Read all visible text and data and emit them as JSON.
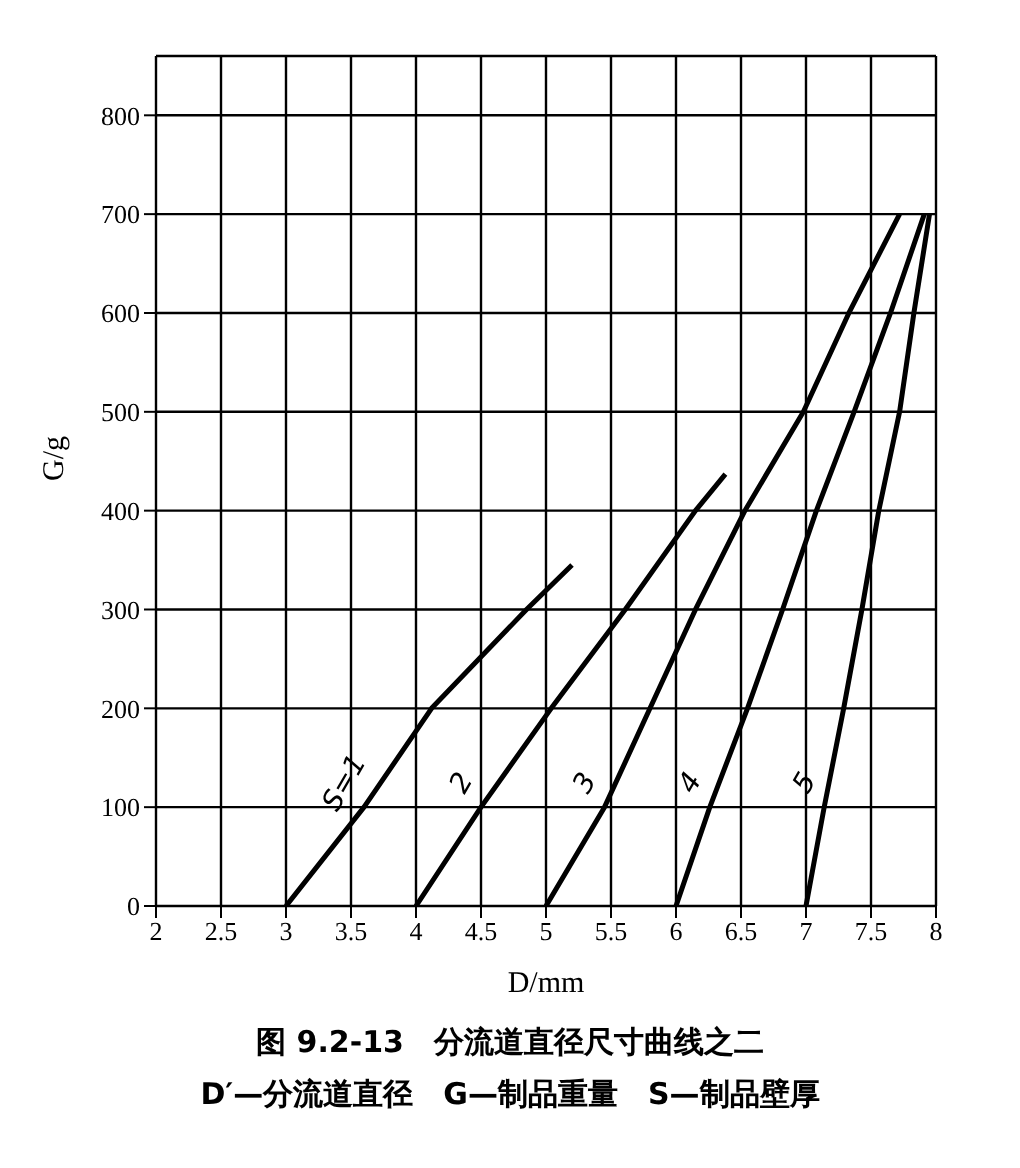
{
  "chart_data": {
    "type": "line",
    "xlabel": "D/mm",
    "ylabel": "G/g",
    "xlim": [
      2,
      8
    ],
    "ylim": [
      0,
      860
    ],
    "xticks": [
      2,
      2.5,
      3,
      3.5,
      4,
      4.5,
      5,
      5.5,
      6,
      6.5,
      7,
      7.5,
      8
    ],
    "yticks": [
      0,
      100,
      200,
      300,
      400,
      500,
      600,
      700,
      800
    ],
    "grid": true,
    "legend": false,
    "marker": "none",
    "line_style": "solid",
    "series": [
      {
        "name": "S=1",
        "color": "#000000",
        "x": [
          3,
          3.6,
          4.12,
          4.85,
          5.2
        ],
        "values": [
          0,
          100,
          200,
          300,
          345
        ]
      },
      {
        "name": "2",
        "color": "#000000",
        "x": [
          4,
          4.5,
          5.04,
          5.61,
          6.15,
          6.38
        ],
        "values": [
          0,
          100,
          200,
          300,
          400,
          437
        ]
      },
      {
        "name": "3",
        "color": "#000000",
        "x": [
          5,
          5.45,
          5.8,
          6.15,
          6.53,
          6.98,
          7.33,
          7.72
        ],
        "values": [
          0,
          100,
          200,
          300,
          400,
          500,
          600,
          700
        ]
      },
      {
        "name": "4",
        "color": "#000000",
        "x": [
          6,
          6.26,
          6.55,
          6.82,
          7.08,
          7.37,
          7.65,
          7.91
        ],
        "values": [
          0,
          100,
          200,
          300,
          400,
          500,
          600,
          700
        ]
      },
      {
        "name": "5",
        "color": "#000000",
        "x": [
          7,
          7.14,
          7.29,
          7.43,
          7.56,
          7.72,
          7.83,
          7.95
        ],
        "values": [
          0,
          100,
          200,
          300,
          400,
          500,
          600,
          700
        ]
      }
    ],
    "annotations": [
      "图 9.2-13　分流道直径尺寸曲线之二",
      "D′—分流道直径　G—制品重量　S—制品壁厚"
    ]
  }
}
